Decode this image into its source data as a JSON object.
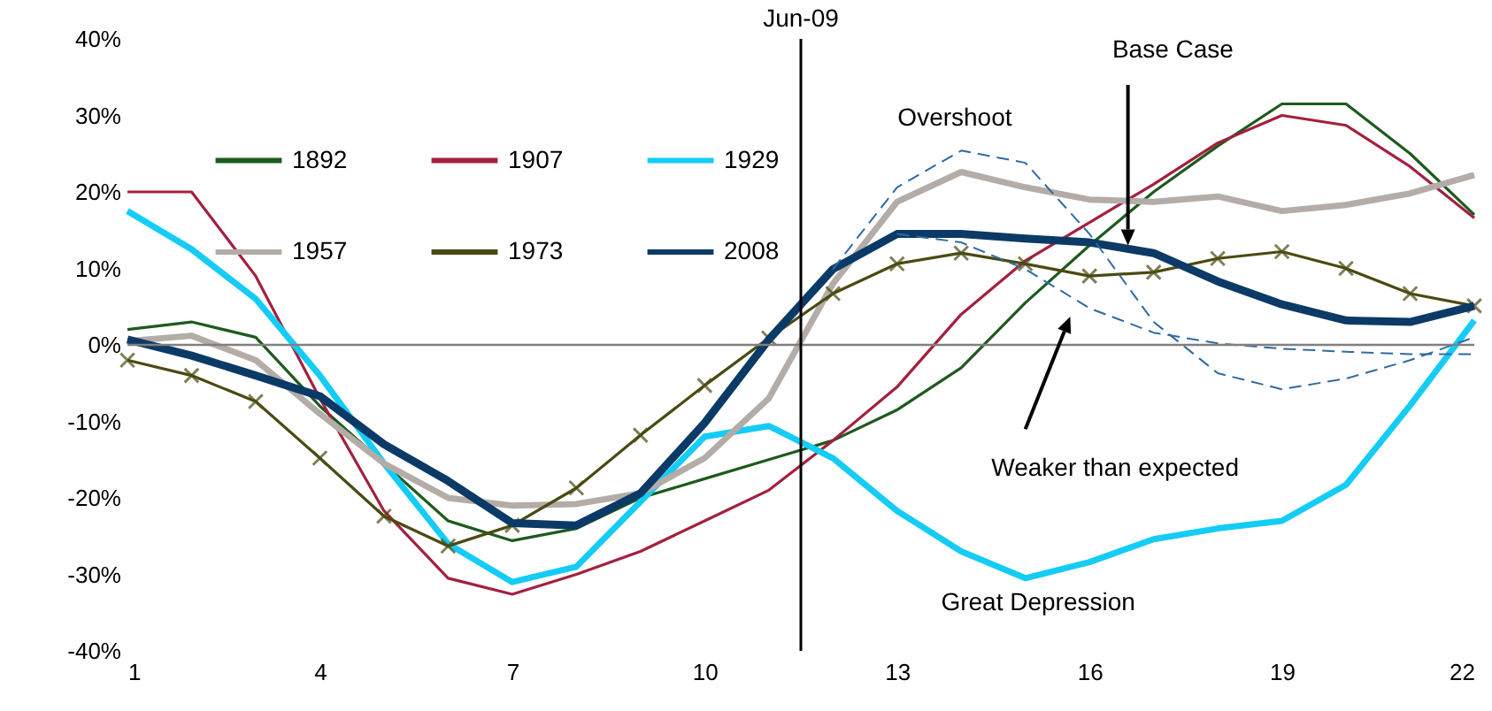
{
  "chart_data": {
    "type": "line",
    "x": [
      1,
      2,
      3,
      4,
      5,
      6,
      7,
      8,
      9,
      10,
      11,
      12,
      13,
      14,
      15,
      16,
      17,
      18,
      19,
      20,
      21,
      22
    ],
    "series": [
      {
        "name": "1892",
        "color": "#1e5a1e",
        "values": [
          2,
          3,
          1,
          -8,
          -15.5,
          -23,
          -25.6,
          -24,
          -20,
          -17.5,
          -15,
          -12.5,
          -8.5,
          -3,
          5.5,
          13,
          20,
          26,
          31.5,
          31.5,
          25,
          17
        ]
      },
      {
        "name": "1907",
        "color": "#a3203f",
        "values": [
          20,
          20,
          9,
          -7,
          -21.7,
          -30.5,
          -32.6,
          -30,
          -27,
          -23,
          -19,
          -12.5,
          -5.5,
          4,
          11,
          16,
          21,
          26.4,
          30,
          28.7,
          23.3,
          16.6
        ]
      },
      {
        "name": "1929",
        "color": "#14ccf5",
        "values": [
          17.5,
          12.5,
          6,
          -4,
          -15.5,
          -26,
          -31,
          -29,
          -20.5,
          -12,
          -10.6,
          -14.8,
          -21.7,
          -27,
          -30.5,
          -28.4,
          -25.4,
          -24,
          -23,
          -18.3,
          -7.9,
          3.2
        ]
      },
      {
        "name": "1957",
        "color": "#b3aca7",
        "values": [
          0.5,
          1.2,
          -2,
          -9,
          -15.5,
          -20,
          -21,
          -20.8,
          -19.4,
          -14.8,
          -7,
          8,
          18.7,
          22.6,
          20.6,
          19,
          18.7,
          19.4,
          17.5,
          18.3,
          19.8,
          22.2
        ]
      },
      {
        "name": "1973",
        "color": "#4a4a12",
        "marker": "cross",
        "values": [
          -2,
          -4,
          -7.4,
          -14.8,
          -22.4,
          -26.3,
          -23.6,
          -18.7,
          -11.8,
          -5.3,
          0.9,
          6.7,
          10.6,
          12,
          10.6,
          9,
          9.5,
          11.3,
          12.2,
          10,
          6.7,
          5.1
        ]
      },
      {
        "name": "2008",
        "color": "#0b3a66",
        "values": [
          0.7,
          -1.4,
          -4,
          -6.7,
          -13,
          -17.8,
          -23.3,
          -23.6,
          -19.4,
          -10.2,
          0.7,
          9.9,
          14.5,
          14.5,
          13.9,
          13.4,
          12,
          8.3,
          5.3,
          3.2,
          3,
          5.1
        ]
      },
      {
        "color": "#2f6aa0",
        "line_style": "dashed",
        "values": [
          null,
          null,
          null,
          null,
          null,
          null,
          null,
          null,
          null,
          null,
          null,
          9.9,
          20.6,
          25.4,
          23.8,
          14.5,
          3,
          -3.7,
          -5.8,
          -4.4,
          -2,
          1
        ]
      },
      {
        "color": "#2f6aa0",
        "line_style": "dashed",
        "values": [
          null,
          null,
          null,
          null,
          null,
          null,
          null,
          null,
          null,
          null,
          null,
          null,
          14.5,
          13.4,
          9.9,
          4.8,
          1.6,
          0.2,
          -0.5,
          -0.9,
          -1.2,
          -1.2
        ]
      }
    ],
    "xlim": [
      1,
      22
    ],
    "xticks": [
      1,
      4,
      7,
      10,
      13,
      16,
      19,
      22
    ],
    "ylim": [
      -40,
      40
    ],
    "yticks": [
      {
        "value": -40,
        "label": "-40%"
      },
      {
        "value": -30,
        "label": "-30%"
      },
      {
        "value": -20,
        "label": "-20%"
      },
      {
        "value": -10,
        "label": "-10%"
      },
      {
        "value": 0,
        "label": "0%"
      },
      {
        "value": 10,
        "label": "10%"
      },
      {
        "value": 20,
        "label": "20%"
      },
      {
        "value": 30,
        "label": "30%"
      },
      {
        "value": 40,
        "label": "40%"
      }
    ],
    "ref_lines": [
      {
        "axis": "y",
        "value": 0,
        "color": "#808080"
      },
      {
        "axis": "x",
        "value": 11.5,
        "label": "Jun-09",
        "color": "#000000"
      }
    ],
    "annotations": [
      "Base Case",
      "Overshoot",
      "Weaker than expected",
      "Great Depression"
    ],
    "grid": false,
    "legend": "top left"
  }
}
